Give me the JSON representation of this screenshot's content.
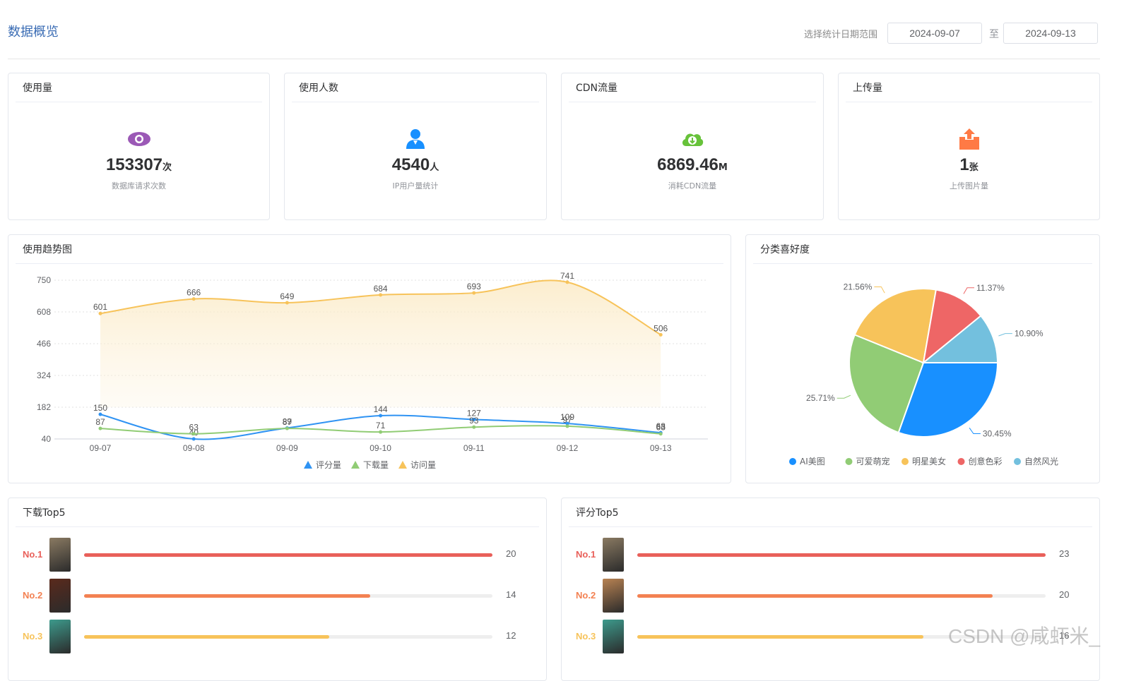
{
  "header": {
    "title": "数据概览",
    "date_label": "选择统计日期范围",
    "start_date": "2024-09-07",
    "end_date": "2024-09-13",
    "separator": "至"
  },
  "stats": [
    {
      "title": "使用量",
      "value": "153307",
      "unit": "次",
      "desc": "数据库请求次数",
      "icon": "eye-icon",
      "color": "#9b59b6"
    },
    {
      "title": "使用人数",
      "value": "4540",
      "unit": "人",
      "desc": "IP用户量统计",
      "icon": "user-icon",
      "color": "#1890ff"
    },
    {
      "title": "CDN流量",
      "value": "6869.46",
      "unit": "M",
      "desc": "消耗CDN流量",
      "icon": "cloud-download-icon",
      "color": "#67c23a"
    },
    {
      "title": "上传量",
      "value": "1",
      "unit": "张",
      "desc": "上传图片量",
      "icon": "upload-icon",
      "color": "#ff7a45"
    }
  ],
  "trend": {
    "title": "使用趋势图"
  },
  "preference": {
    "title": "分类喜好度"
  },
  "downloads": {
    "title": "下载Top5",
    "items": [
      {
        "rank": "No.1",
        "value": "20",
        "fraction": 1.0,
        "color": "#e9605a",
        "rank_color": "#e9605a",
        "thumb_color": "#8a7a62"
      },
      {
        "rank": "No.2",
        "value": "14",
        "fraction": 0.7,
        "color": "#f38152",
        "rank_color": "#f38152",
        "thumb_color": "#5a2a1c"
      },
      {
        "rank": "No.3",
        "value": "12",
        "fraction": 0.6,
        "color": "#f7c35a",
        "rank_color": "#f7c35a",
        "thumb_color": "#3d9a8c"
      }
    ]
  },
  "ratings": {
    "title": "评分Top5",
    "items": [
      {
        "rank": "No.1",
        "value": "23",
        "fraction": 1.0,
        "color": "#e9605a",
        "rank_color": "#e9605a",
        "thumb_color": "#8a7a62"
      },
      {
        "rank": "No.2",
        "value": "20",
        "fraction": 0.87,
        "color": "#f38152",
        "rank_color": "#f38152",
        "thumb_color": "#b88252"
      },
      {
        "rank": "No.3",
        "value": "16",
        "fraction": 0.7,
        "color": "#f7c35a",
        "rank_color": "#f7c35a",
        "thumb_color": "#3d9a8c"
      }
    ]
  },
  "watermark": "CSDN @咸虾米_",
  "chart_data": [
    {
      "type": "line",
      "title": "使用趋势图",
      "x": [
        "09-07",
        "09-08",
        "09-09",
        "09-10",
        "09-11",
        "09-12",
        "09-13"
      ],
      "y_ticks": [
        40,
        182,
        324,
        466,
        608,
        750
      ],
      "ylim": [
        40,
        750
      ],
      "grid": true,
      "legend_position": "bottom",
      "series": [
        {
          "name": "评分量",
          "values": [
            150,
            40,
            89,
            144,
            127,
            109,
            68
          ],
          "color": "#2f93f3"
        },
        {
          "name": "下载量",
          "values": [
            87,
            63,
            87,
            71,
            93,
            97,
            63
          ],
          "color": "#91cc75"
        },
        {
          "name": "访问量",
          "values": [
            601,
            666,
            649,
            684,
            693,
            741,
            506
          ],
          "color": "#f7c35a",
          "area": true
        }
      ]
    },
    {
      "type": "pie",
      "title": "分类喜好度",
      "legend_position": "bottom",
      "slices": [
        {
          "name": "AI美图",
          "percent": 30.45,
          "color": "#1890ff"
        },
        {
          "name": "可爱萌宠",
          "percent": 25.71,
          "color": "#91cc75"
        },
        {
          "name": "明星美女",
          "percent": 21.56,
          "color": "#f7c35a"
        },
        {
          "name": "创意色彩",
          "percent": 11.37,
          "color": "#ee6666"
        },
        {
          "name": "自然风光",
          "percent": 10.9,
          "color": "#73c0de"
        }
      ]
    }
  ]
}
